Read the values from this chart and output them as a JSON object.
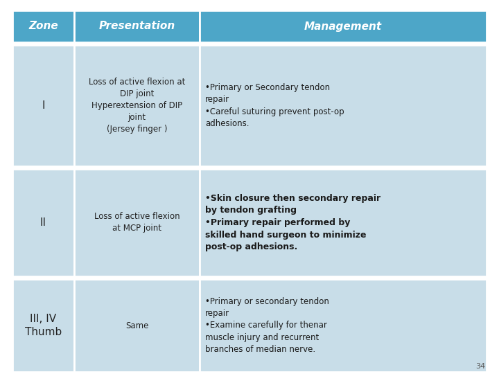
{
  "header_bg": "#4da6c8",
  "header_text_color": "#ffffff",
  "row_bg_light": "#c8dde8",
  "cell_border_color": "#ffffff",
  "page_bg": "#ffffff",
  "headers": [
    "Zone",
    "Presentation",
    "Management"
  ],
  "zone_labels": [
    "I",
    "II",
    "III, IV\nThumb"
  ],
  "presentation_texts": [
    "Loss of active flexion at\nDIP joint\nHyperextension of DIP\njoint\n(Jersey finger )",
    "Loss of active flexion\nat MCP joint",
    "Same"
  ],
  "management_texts": [
    "•Primary or Secondary tendon\nrepair\n•Careful suturing prevent post-op\nadhesions.",
    "•Skin closure then secondary repair\nby tendon grafting\n•Primary repair performed by\nskilled hand surgeon to minimize\npost-op adhesions.",
    "•Primary or secondary tendon\nrepair\n•Examine carefully for thenar\nmuscle injury and recurrent\nbranches of median nerve."
  ],
  "management_bold": [
    false,
    true,
    false
  ],
  "page_number": "34",
  "header_fontsize": 11,
  "zone_fontsize": 11,
  "pres_fontsize": 8.5,
  "mgmt_fontsize": 8.5,
  "mgmt_bold_fontsize": 9.0
}
